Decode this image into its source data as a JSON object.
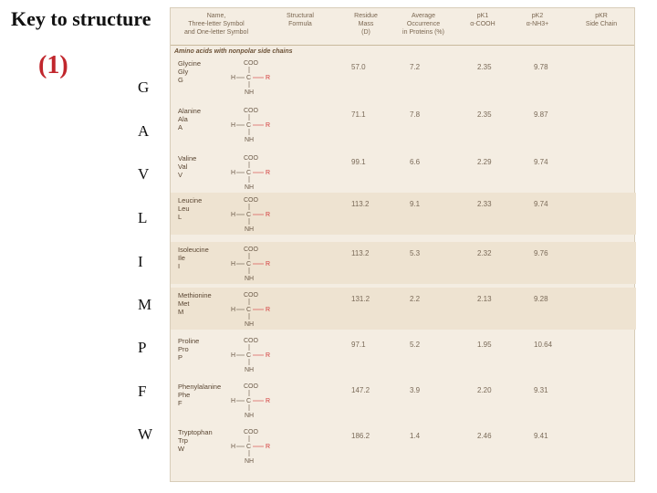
{
  "title": "Key to structure",
  "number": "(1)",
  "letters": [
    "G",
    "A",
    "V",
    "L",
    "I",
    "M",
    "P",
    "F",
    "W"
  ],
  "table": {
    "headers": {
      "name": "Name,\nThree-letter Symbol\nand One-letter Symbol",
      "formula": "Structural\nFormula",
      "mass": "Residue\nMass\n(D)",
      "occurrence": "Average\nOccurrence\nin Proteins (%)",
      "pk1": "pK1\nα-COOH",
      "pk2": "pK2\nα-NH3+",
      "pkr": "pKR\nSide Chain"
    },
    "section": "Amino acids with nonpolar side chains",
    "rows": [
      {
        "name": "Glycine",
        "three": "Gly",
        "one": "G",
        "mass": "57.0",
        "occ": "7.2",
        "pk1": "2.35",
        "pk2": "9.78",
        "pkr": ""
      },
      {
        "name": "Alanine",
        "three": "Ala",
        "one": "A",
        "mass": "71.1",
        "occ": "7.8",
        "pk1": "2.35",
        "pk2": "9.87",
        "pkr": ""
      },
      {
        "name": "Valine",
        "three": "Val",
        "one": "V",
        "mass": "99.1",
        "occ": "6.6",
        "pk1": "2.29",
        "pk2": "9.74",
        "pkr": ""
      },
      {
        "name": "Leucine",
        "three": "Leu",
        "one": "L",
        "mass": "113.2",
        "occ": "9.1",
        "pk1": "2.33",
        "pk2": "9.74",
        "pkr": ""
      },
      {
        "name": "Isoleucine",
        "three": "Ile",
        "one": "I",
        "mass": "113.2",
        "occ": "5.3",
        "pk1": "2.32",
        "pk2": "9.76",
        "pkr": ""
      },
      {
        "name": "Methionine",
        "three": "Met",
        "one": "M",
        "mass": "131.2",
        "occ": "2.2",
        "pk1": "2.13",
        "pk2": "9.28",
        "pkr": ""
      },
      {
        "name": "Proline",
        "three": "Pro",
        "one": "P",
        "mass": "97.1",
        "occ": "5.2",
        "pk1": "1.95",
        "pk2": "10.64",
        "pkr": ""
      },
      {
        "name": "Phenylalanine",
        "three": "Phe",
        "one": "F",
        "mass": "147.2",
        "occ": "3.9",
        "pk1": "2.20",
        "pk2": "9.31",
        "pkr": ""
      },
      {
        "name": "Tryptophan",
        "three": "Trp",
        "one": "W",
        "mass": "186.2",
        "occ": "1.4",
        "pk1": "2.46",
        "pk2": "9.41",
        "pkr": ""
      }
    ]
  },
  "colors": {
    "accent": "#c1272d",
    "panel": "#f4ede2",
    "sidechain": "#d23a3a"
  }
}
